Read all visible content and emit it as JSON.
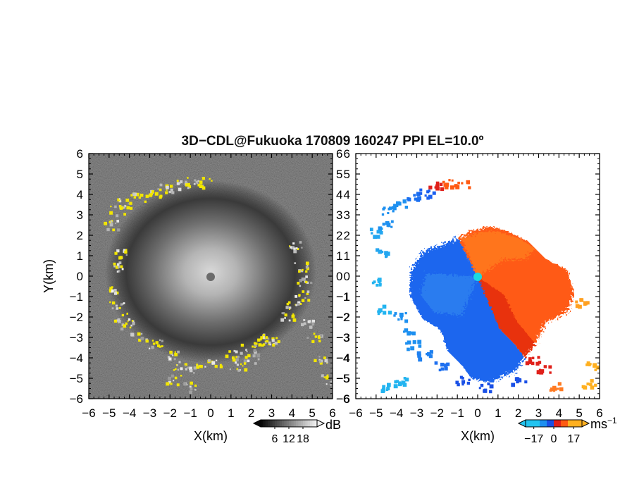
{
  "title": "3D−CDL@Fukuoka 170809 160247 PPI EL=10.0º",
  "chart_data": [
    {
      "type": "heatmap",
      "panel": "left",
      "title": "",
      "xlabel": "X(km)",
      "ylabel": "Y(km)",
      "xlim": [
        -6,
        6
      ],
      "ylim": [
        -6,
        6
      ],
      "xticks": [
        "−6",
        "−5",
        "−4",
        "−3",
        "−2",
        "−1",
        "0",
        "1",
        "2",
        "3",
        "4",
        "5",
        "6"
      ],
      "yticks": [
        "6",
        "5",
        "4",
        "3",
        "2",
        "1",
        "0",
        "−1",
        "−2",
        "−3",
        "−4",
        "−5",
        "−6"
      ],
      "colorbar": {
        "unit": "dB",
        "ticks": [
          "6",
          "12",
          "18"
        ],
        "range": [
          0,
          24
        ],
        "colormap": "gray-to-white",
        "extend": "both"
      },
      "background_color": "#2a2a2a",
      "highlight_color": "#f2e600",
      "radar_center": [
        0,
        0
      ]
    },
    {
      "type": "heatmap",
      "panel": "right",
      "title": "",
      "xlabel": "X(km)",
      "ylabel": "",
      "xlim": [
        -6,
        6
      ],
      "ylim": [
        -6,
        6
      ],
      "xticks": [
        "−6",
        "−5",
        "−4",
        "−3",
        "−2",
        "−1",
        "0",
        "1",
        "2",
        "3",
        "4",
        "5",
        "6"
      ],
      "yticks": [
        "6",
        "5",
        "4",
        "3",
        "2",
        "1",
        "0",
        "−1",
        "−2",
        "−3",
        "−4",
        "−5",
        "−6"
      ],
      "colorbar": {
        "unit": "ms",
        "unit_exponent": "−1",
        "ticks": [
          "−17",
          "0",
          "17"
        ],
        "range": [
          -24,
          24
        ],
        "colormap": "cyan-blue-red-orange",
        "extend": "both"
      },
      "negative_color": "#1f6cf0",
      "positive_color": "#ff6a10",
      "radar_center": [
        0,
        0
      ]
    }
  ]
}
